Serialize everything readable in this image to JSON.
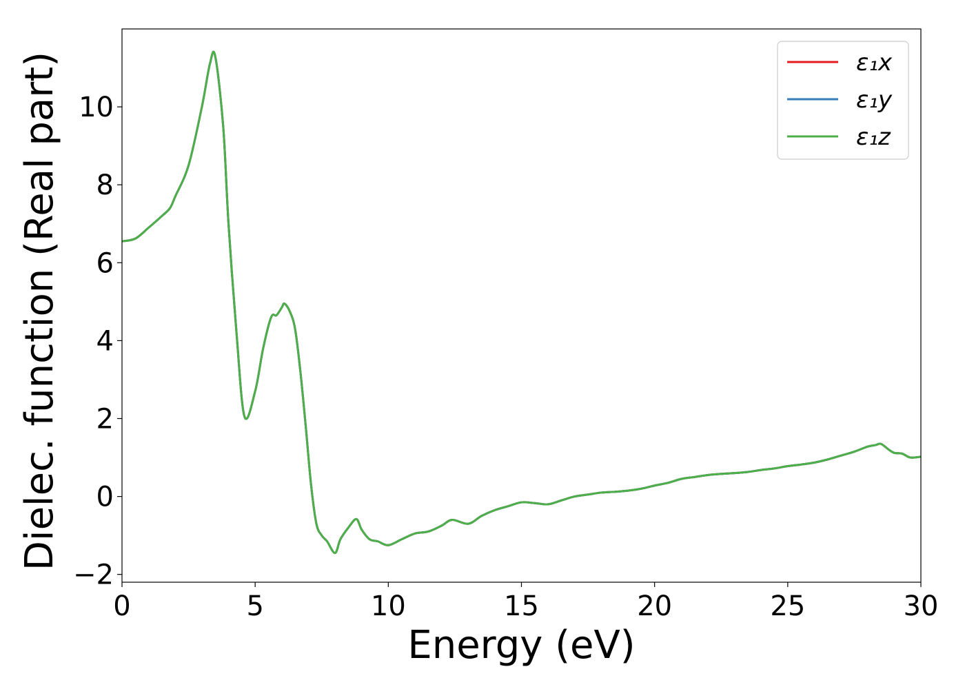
{
  "chart_data": {
    "type": "line",
    "xlabel": "Energy (eV)",
    "ylabel": "Dielec. function (Real part)",
    "xlim": [
      0,
      30
    ],
    "ylim": [
      -2.2,
      12.0
    ],
    "xticks": [
      0,
      5,
      10,
      15,
      20,
      25,
      30
    ],
    "yticks": [
      -2,
      0,
      2,
      4,
      6,
      8,
      10
    ],
    "xtick_labels": [
      "0",
      "5",
      "10",
      "15",
      "20",
      "25",
      "30"
    ],
    "ytick_labels": [
      "−2",
      "0",
      "2",
      "4",
      "6",
      "8",
      "10"
    ],
    "grid": false,
    "legend_position": "top-right",
    "x": [
      0,
      0.5,
      1.0,
      1.5,
      1.8,
      2.0,
      2.5,
      3.0,
      3.3,
      3.5,
      3.8,
      4.0,
      4.3,
      4.6,
      5.0,
      5.3,
      5.6,
      5.8,
      6.0,
      6.1,
      6.3,
      6.5,
      6.7,
      6.9,
      7.1,
      7.3,
      7.5,
      7.7,
      8.0,
      8.2,
      8.5,
      8.8,
      9.0,
      9.3,
      9.6,
      10.0,
      10.5,
      11.0,
      11.5,
      12.0,
      12.4,
      13.0,
      13.5,
      14.0,
      14.5,
      15.0,
      15.5,
      16.0,
      16.5,
      17.0,
      17.5,
      18.0,
      18.5,
      19.0,
      19.5,
      20.0,
      20.5,
      21.0,
      21.5,
      22.0,
      22.5,
      23.0,
      23.5,
      24.0,
      24.5,
      25.0,
      25.5,
      26.0,
      26.5,
      27.0,
      27.5,
      28.0,
      28.3,
      28.5,
      28.8,
      29.0,
      29.3,
      29.6,
      30.0
    ],
    "series": [
      {
        "name": "ε₁x",
        "color": "#e41a1c",
        "y": [
          6.55,
          6.62,
          6.9,
          7.2,
          7.4,
          7.7,
          8.5,
          10.0,
          11.1,
          11.3,
          9.5,
          7.0,
          4.2,
          2.05,
          2.7,
          3.8,
          4.6,
          4.65,
          4.85,
          4.95,
          4.75,
          4.3,
          3.2,
          1.8,
          0.3,
          -0.7,
          -1.0,
          -1.15,
          -1.45,
          -1.1,
          -0.8,
          -0.58,
          -0.85,
          -1.1,
          -1.15,
          -1.25,
          -1.1,
          -0.95,
          -0.9,
          -0.75,
          -0.6,
          -0.7,
          -0.5,
          -0.35,
          -0.25,
          -0.15,
          -0.17,
          -0.2,
          -0.1,
          0.0,
          0.05,
          0.1,
          0.12,
          0.15,
          0.2,
          0.28,
          0.35,
          0.45,
          0.5,
          0.55,
          0.58,
          0.6,
          0.63,
          0.68,
          0.72,
          0.78,
          0.82,
          0.87,
          0.95,
          1.05,
          1.15,
          1.28,
          1.32,
          1.35,
          1.2,
          1.12,
          1.1,
          1.0,
          1.02
        ]
      },
      {
        "name": "ε₁y",
        "color": "#377eb8",
        "y": [
          6.55,
          6.62,
          6.9,
          7.2,
          7.4,
          7.7,
          8.5,
          10.0,
          11.1,
          11.3,
          9.5,
          7.0,
          4.2,
          2.05,
          2.7,
          3.8,
          4.6,
          4.65,
          4.85,
          4.95,
          4.75,
          4.3,
          3.2,
          1.8,
          0.3,
          -0.7,
          -1.0,
          -1.15,
          -1.45,
          -1.1,
          -0.8,
          -0.58,
          -0.85,
          -1.1,
          -1.15,
          -1.25,
          -1.1,
          -0.95,
          -0.9,
          -0.75,
          -0.6,
          -0.7,
          -0.5,
          -0.35,
          -0.25,
          -0.15,
          -0.17,
          -0.2,
          -0.1,
          0.0,
          0.05,
          0.1,
          0.12,
          0.15,
          0.2,
          0.28,
          0.35,
          0.45,
          0.5,
          0.55,
          0.58,
          0.6,
          0.63,
          0.68,
          0.72,
          0.78,
          0.82,
          0.87,
          0.95,
          1.05,
          1.15,
          1.28,
          1.32,
          1.35,
          1.2,
          1.12,
          1.1,
          1.0,
          1.02
        ]
      },
      {
        "name": "ε₁z",
        "color": "#4daf4a",
        "y": [
          6.55,
          6.62,
          6.9,
          7.2,
          7.4,
          7.7,
          8.5,
          10.0,
          11.1,
          11.3,
          9.5,
          7.0,
          4.2,
          2.05,
          2.7,
          3.8,
          4.6,
          4.65,
          4.85,
          4.95,
          4.75,
          4.3,
          3.2,
          1.8,
          0.3,
          -0.7,
          -1.0,
          -1.15,
          -1.45,
          -1.1,
          -0.8,
          -0.58,
          -0.85,
          -1.1,
          -1.15,
          -1.25,
          -1.1,
          -0.95,
          -0.9,
          -0.75,
          -0.6,
          -0.7,
          -0.5,
          -0.35,
          -0.25,
          -0.15,
          -0.17,
          -0.2,
          -0.1,
          0.0,
          0.05,
          0.1,
          0.12,
          0.15,
          0.2,
          0.28,
          0.35,
          0.45,
          0.5,
          0.55,
          0.58,
          0.6,
          0.63,
          0.68,
          0.72,
          0.78,
          0.82,
          0.87,
          0.95,
          1.05,
          1.15,
          1.28,
          1.32,
          1.35,
          1.2,
          1.12,
          1.1,
          1.0,
          1.02
        ]
      }
    ]
  }
}
